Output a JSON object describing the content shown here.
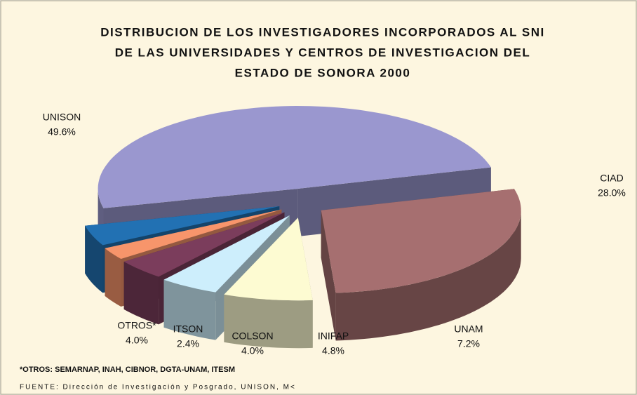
{
  "chart_data": {
    "type": "pie3d",
    "title": [
      "DISTRIBUCION DE LOS INVESTIGADORES INCORPORADOS AL SNI",
      "DE LAS UNIVERSIDADES Y CENTROS DE INVESTIGACION DEL",
      "ESTADO DE SONORA 2000"
    ],
    "categories": [
      "CIAD",
      "UNAM",
      "INIFAP",
      "COLSON",
      "ITSON",
      "OTROS*",
      "UNISON"
    ],
    "values": [
      28.0,
      7.2,
      4.8,
      4.0,
      2.4,
      4.0,
      49.6
    ],
    "value_labels": [
      "28.0%",
      "7.2%",
      "4.8%",
      "4.0%",
      "2.4%",
      "4.0%",
      "49.6%"
    ],
    "colors": [
      "#a66f70",
      "#fdfbd2",
      "#cdeefc",
      "#7b3d5c",
      "#f7956b",
      "#2271b3",
      "#9a97cf"
    ],
    "notes": [
      "*OTROS: SEMARNAP, INAH, CIBNOR, DGTA-UNAM, ITESM",
      "FUENTE: Dirección de Investigación y Posgrado, UNISON, M<"
    ]
  }
}
